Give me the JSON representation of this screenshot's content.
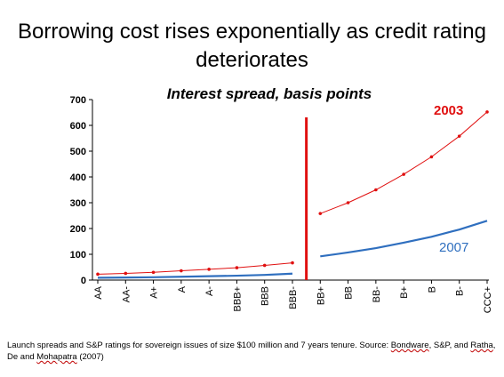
{
  "slide": {
    "title": "Borrowing cost rises exponentially as credit rating deteriorates",
    "footnote_parts": [
      "Launch spreads and S&P ratings for sovereign issues of size $100 million and 7 years tenure. Source: ",
      "Bondware",
      ", S&P, and ",
      "Ratha",
      ", De and ",
      "Mohapatra",
      " (2007)"
    ]
  },
  "chart_data": {
    "type": "line",
    "title": "Interest spread, basis points",
    "xlabel": "",
    "ylabel": "",
    "categories": [
      "AA",
      "AA-",
      "A+",
      "A",
      "A-",
      "BBB+",
      "BBB",
      "BBB-",
      "BB+",
      "BB",
      "BB-",
      "B+",
      "B",
      "B-",
      "CCC+"
    ],
    "ylim": [
      0,
      700
    ],
    "yticks": [
      0,
      100,
      200,
      300,
      400,
      500,
      600,
      700
    ],
    "series": [
      {
        "name": "2003",
        "color": "#e01010",
        "markers": true,
        "segments": [
          {
            "x": [
              "AA",
              "AA-",
              "A+",
              "A",
              "A-",
              "BBB+",
              "BBB",
              "BBB-"
            ],
            "values": [
              23,
              26,
              30,
              36,
              42,
              48,
              57,
              67
            ]
          },
          {
            "x": [
              "BB+",
              "BB",
              "BB-",
              "B+",
              "B",
              "B-",
              "CCC+"
            ],
            "values": [
              258,
              300,
              350,
              410,
              478,
              558,
              652
            ]
          }
        ]
      },
      {
        "name": "2007",
        "color": "#2f6fbf",
        "markers": false,
        "segments": [
          {
            "x": [
              "AA",
              "AA-",
              "A+",
              "A",
              "A-",
              "BBB+",
              "BBB",
              "BBB-"
            ],
            "values": [
              9,
              10,
              11,
              13,
              15,
              17,
              20,
              25
            ]
          },
          {
            "x": [
              "BB+",
              "BB",
              "BB-",
              "B+",
              "B",
              "B-",
              "CCC+"
            ],
            "values": [
              92,
              107,
              124,
              145,
              168,
              196,
              230
            ]
          }
        ]
      }
    ],
    "divider": {
      "between": [
        "BBB-",
        "BB+"
      ],
      "color": "#e01010"
    },
    "grid": false,
    "legend": "inline labels"
  }
}
